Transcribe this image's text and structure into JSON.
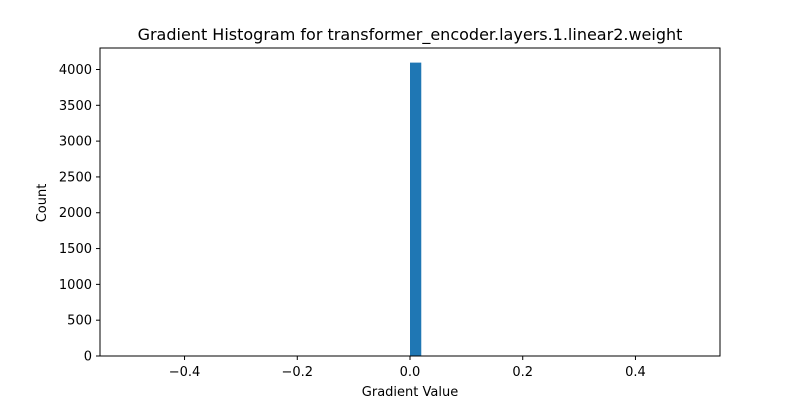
{
  "chart_data": {
    "type": "bar",
    "title": "Gradient Histogram for transformer_encoder.layers.1.linear2.weight",
    "xlabel": "Gradient Value",
    "ylabel": "Count",
    "xlim": [
      -0.55,
      0.55
    ],
    "ylim": [
      0,
      4300
    ],
    "xticks": [
      -0.4,
      -0.2,
      0.0,
      0.2,
      0.4
    ],
    "xtick_labels": [
      "−0.4",
      "−0.2",
      "0.0",
      "0.2",
      "0.4"
    ],
    "yticks": [
      0,
      500,
      1000,
      1500,
      2000,
      2500,
      3000,
      3500,
      4000
    ],
    "ytick_labels": [
      "0",
      "500",
      "1000",
      "1500",
      "2000",
      "2500",
      "3000",
      "3500",
      "4000"
    ],
    "bins": [
      {
        "x0": 0.0,
        "x1": 0.02,
        "count": 4096
      }
    ],
    "bar_color": "#1f77b4",
    "grid": false,
    "legend": false
  }
}
